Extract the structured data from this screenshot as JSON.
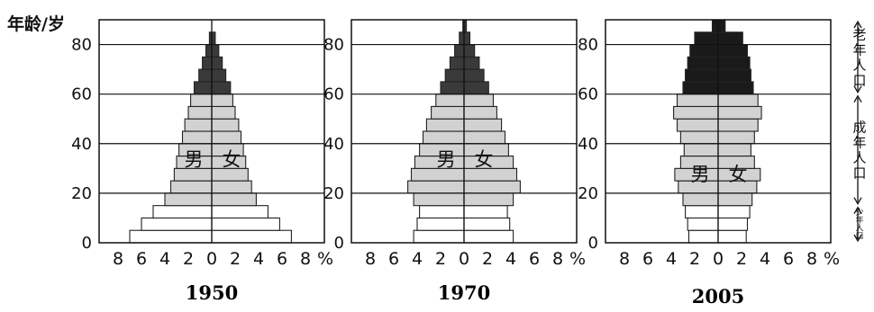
{
  "y_axis_title": "年龄/岁",
  "right_labels": {
    "old": "老年人口",
    "adult": "成年人口",
    "young": "少年人口"
  },
  "chart_data": [
    {
      "type": "bar",
      "title": "1950",
      "male_label": "男",
      "female_label": "女",
      "ylim": [
        0,
        90
      ],
      "xlim": [
        -10,
        10
      ],
      "y_ticks": [
        0,
        20,
        40,
        60,
        80
      ],
      "x_tick_labels": [
        "8",
        "6",
        "4",
        "2",
        "0",
        "2",
        "4",
        "6",
        "8"
      ],
      "x_unit": "%",
      "age_bands": [
        [
          0,
          5
        ],
        [
          5,
          10
        ],
        [
          10,
          15
        ],
        [
          15,
          20
        ],
        [
          20,
          25
        ],
        [
          25,
          30
        ],
        [
          30,
          35
        ],
        [
          35,
          40
        ],
        [
          40,
          45
        ],
        [
          45,
          50
        ],
        [
          50,
          55
        ],
        [
          55,
          60
        ],
        [
          60,
          65
        ],
        [
          65,
          70
        ],
        [
          70,
          75
        ],
        [
          75,
          80
        ],
        [
          80,
          85
        ]
      ],
      "series": [
        {
          "name": "男",
          "values": [
            7.0,
            6.0,
            5.0,
            4.0,
            3.5,
            3.2,
            3.0,
            2.8,
            2.5,
            2.3,
            2.0,
            1.8,
            1.5,
            1.1,
            0.8,
            0.5,
            0.2
          ]
        },
        {
          "name": "女",
          "values": [
            6.8,
            5.8,
            4.8,
            3.8,
            3.4,
            3.1,
            2.9,
            2.7,
            2.5,
            2.3,
            2.0,
            1.8,
            1.6,
            1.2,
            0.9,
            0.6,
            0.3
          ]
        }
      ]
    },
    {
      "type": "bar",
      "title": "1970",
      "male_label": "男",
      "female_label": "女",
      "ylim": [
        0,
        90
      ],
      "xlim": [
        -10,
        10
      ],
      "y_ticks": [
        0,
        20,
        40,
        60,
        80
      ],
      "x_tick_labels": [
        "8",
        "6",
        "4",
        "2",
        "0",
        "2",
        "4",
        "6",
        "8"
      ],
      "x_unit": "%",
      "age_bands": [
        [
          0,
          5
        ],
        [
          5,
          10
        ],
        [
          10,
          15
        ],
        [
          15,
          20
        ],
        [
          20,
          25
        ],
        [
          25,
          30
        ],
        [
          30,
          35
        ],
        [
          35,
          40
        ],
        [
          40,
          45
        ],
        [
          45,
          50
        ],
        [
          50,
          55
        ],
        [
          55,
          60
        ],
        [
          60,
          65
        ],
        [
          65,
          70
        ],
        [
          70,
          75
        ],
        [
          75,
          80
        ],
        [
          80,
          85
        ],
        [
          85,
          90
        ]
      ],
      "series": [
        {
          "name": "男",
          "values": [
            4.3,
            4.0,
            3.8,
            4.3,
            4.8,
            4.5,
            4.2,
            3.8,
            3.5,
            3.2,
            2.8,
            2.4,
            2.0,
            1.6,
            1.2,
            0.8,
            0.4,
            0.1
          ]
        },
        {
          "name": "女",
          "values": [
            4.2,
            3.9,
            3.7,
            4.2,
            4.8,
            4.5,
            4.2,
            3.8,
            3.5,
            3.2,
            2.8,
            2.5,
            2.1,
            1.7,
            1.3,
            0.9,
            0.5,
            0.2
          ]
        }
      ]
    },
    {
      "type": "bar",
      "title": "2005",
      "male_label": "男",
      "female_label": "女",
      "ylim": [
        0,
        90
      ],
      "xlim": [
        -10,
        10
      ],
      "y_ticks": [
        0,
        20,
        40,
        60,
        80
      ],
      "x_tick_labels": [
        "8",
        "6",
        "4",
        "2",
        "0",
        "2",
        "4",
        "6",
        "8"
      ],
      "x_unit": "%",
      "age_bands": [
        [
          0,
          5
        ],
        [
          5,
          10
        ],
        [
          10,
          15
        ],
        [
          15,
          20
        ],
        [
          20,
          25
        ],
        [
          25,
          30
        ],
        [
          30,
          35
        ],
        [
          35,
          40
        ],
        [
          40,
          45
        ],
        [
          45,
          50
        ],
        [
          50,
          55
        ],
        [
          55,
          60
        ],
        [
          60,
          65
        ],
        [
          65,
          70
        ],
        [
          70,
          75
        ],
        [
          75,
          80
        ],
        [
          80,
          85
        ],
        [
          85,
          90
        ]
      ],
      "series": [
        {
          "name": "男",
          "values": [
            2.5,
            2.6,
            2.8,
            3.0,
            3.4,
            3.7,
            3.2,
            2.9,
            3.2,
            3.5,
            3.8,
            3.5,
            3.0,
            2.8,
            2.6,
            2.4,
            2.0,
            0.5
          ]
        },
        {
          "name": "女",
          "values": [
            2.4,
            2.5,
            2.7,
            2.9,
            3.3,
            3.6,
            3.1,
            2.8,
            3.1,
            3.4,
            3.7,
            3.4,
            3.0,
            2.8,
            2.7,
            2.5,
            2.1,
            0.6
          ]
        }
      ]
    }
  ]
}
